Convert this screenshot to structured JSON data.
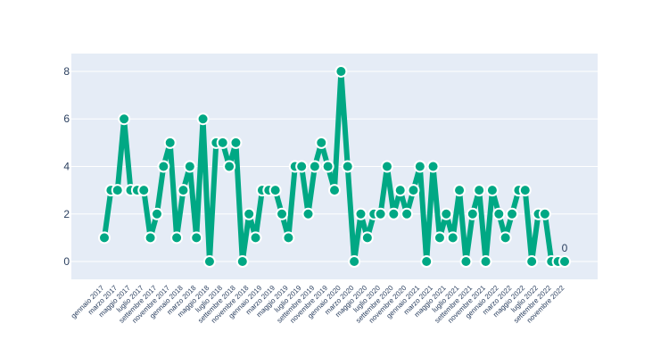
{
  "chart_data": {
    "type": "line",
    "title": "",
    "xlabel": "",
    "ylabel": "",
    "ylim": [
      -0.75,
      8.75
    ],
    "yticks": [
      0,
      2,
      4,
      6,
      8
    ],
    "grid": true,
    "colors": {
      "line": "#00a884",
      "marker_edge": "#ffffff",
      "plot_bg": "#e5ecf6",
      "grid": "#ffffff",
      "text": "#2a3f5f"
    },
    "x": [
      "gennaio 2017",
      "febbraio 2017",
      "marzo 2017",
      "aprile 2017",
      "maggio 2017",
      "giugno 2017",
      "luglio 2017",
      "agosto 2017",
      "settembre 2017",
      "ottobre 2017",
      "novembre 2017",
      "dicembre 2017",
      "gennaio 2018",
      "febbraio 2018",
      "marzo 2018",
      "aprile 2018",
      "maggio 2018",
      "giugno 2018",
      "luglio 2018",
      "agosto 2018",
      "settembre 2018",
      "ottobre 2018",
      "novembre 2018",
      "dicembre 2018",
      "gennaio 2019",
      "febbraio 2019",
      "marzo 2019",
      "aprile 2019",
      "maggio 2019",
      "giugno 2019",
      "luglio 2019",
      "agosto 2019",
      "settembre 2019",
      "ottobre 2019",
      "novembre 2019",
      "dicembre 2019",
      "gennaio 2020",
      "febbraio 2020",
      "marzo 2020",
      "aprile 2020",
      "maggio 2020",
      "giugno 2020",
      "luglio 2020",
      "agosto 2020",
      "settembre 2020",
      "ottobre 2020",
      "novembre 2020",
      "dicembre 2020",
      "gennaio 2021",
      "febbraio 2021",
      "marzo 2021",
      "aprile 2021",
      "maggio 2021",
      "giugno 2021",
      "luglio 2021",
      "agosto 2021",
      "settembre 2021",
      "ottobre 2021",
      "novembre 2021",
      "dicembre 2021",
      "gennaio 2022",
      "febbraio 2022",
      "marzo 2022",
      "aprile 2022",
      "maggio 2022",
      "giugno 2022",
      "luglio 2022",
      "agosto 2022",
      "settembre 2022",
      "ottobre 2022",
      "novembre 2022"
    ],
    "tick_labels": [
      "gennaio 2017",
      "",
      "marzo 2017",
      "",
      "maggio 2017",
      "",
      "luglio 2017",
      "",
      "settembre 2017",
      "",
      "novembre 2017",
      "",
      "gennaio 2018",
      "",
      "marzo 2018",
      "",
      "maggio 2018",
      "",
      "luglio 2018",
      "",
      "settembre 2018",
      "",
      "novembre 2018",
      "",
      "gennaio 2019",
      "",
      "marzo 2019",
      "",
      "maggio 2019",
      "",
      "luglio 2019",
      "",
      "settembre 2019",
      "",
      "novembre 2019",
      "",
      "gennaio 2020",
      "",
      "marzo 2020",
      "",
      "maggio 2020",
      "",
      "luglio 2020",
      "",
      "settembre 2020",
      "",
      "novembre 2020",
      "",
      "gennaio 2021",
      "",
      "marzo 2021",
      "",
      "maggio 2021",
      "",
      "luglio 2021",
      "",
      "settembre 2021",
      "",
      "novembre 2021",
      "",
      "gennaio 2022",
      "",
      "marzo 2022",
      "",
      "maggio 2022",
      "",
      "luglio 2022",
      "",
      "settembre 2022",
      "",
      "novembre 2022"
    ],
    "series": [
      {
        "values": [
          1,
          3,
          3,
          6,
          3,
          3,
          3,
          1,
          2,
          4,
          5,
          1,
          3,
          4,
          1,
          6,
          0,
          5,
          5,
          4,
          5,
          0,
          2,
          1,
          3,
          3,
          3,
          2,
          1,
          4,
          4,
          2,
          4,
          5,
          4,
          3,
          8,
          4,
          0,
          2,
          1,
          2,
          2,
          4,
          2,
          3,
          2,
          3,
          4,
          0,
          4,
          1,
          2,
          1,
          3,
          0,
          2,
          3,
          0,
          3,
          2,
          1,
          2,
          3,
          3,
          0,
          2,
          2,
          0,
          0,
          0
        ]
      }
    ],
    "annotations": [
      {
        "x": "novembre 2022",
        "text": "0"
      }
    ]
  }
}
